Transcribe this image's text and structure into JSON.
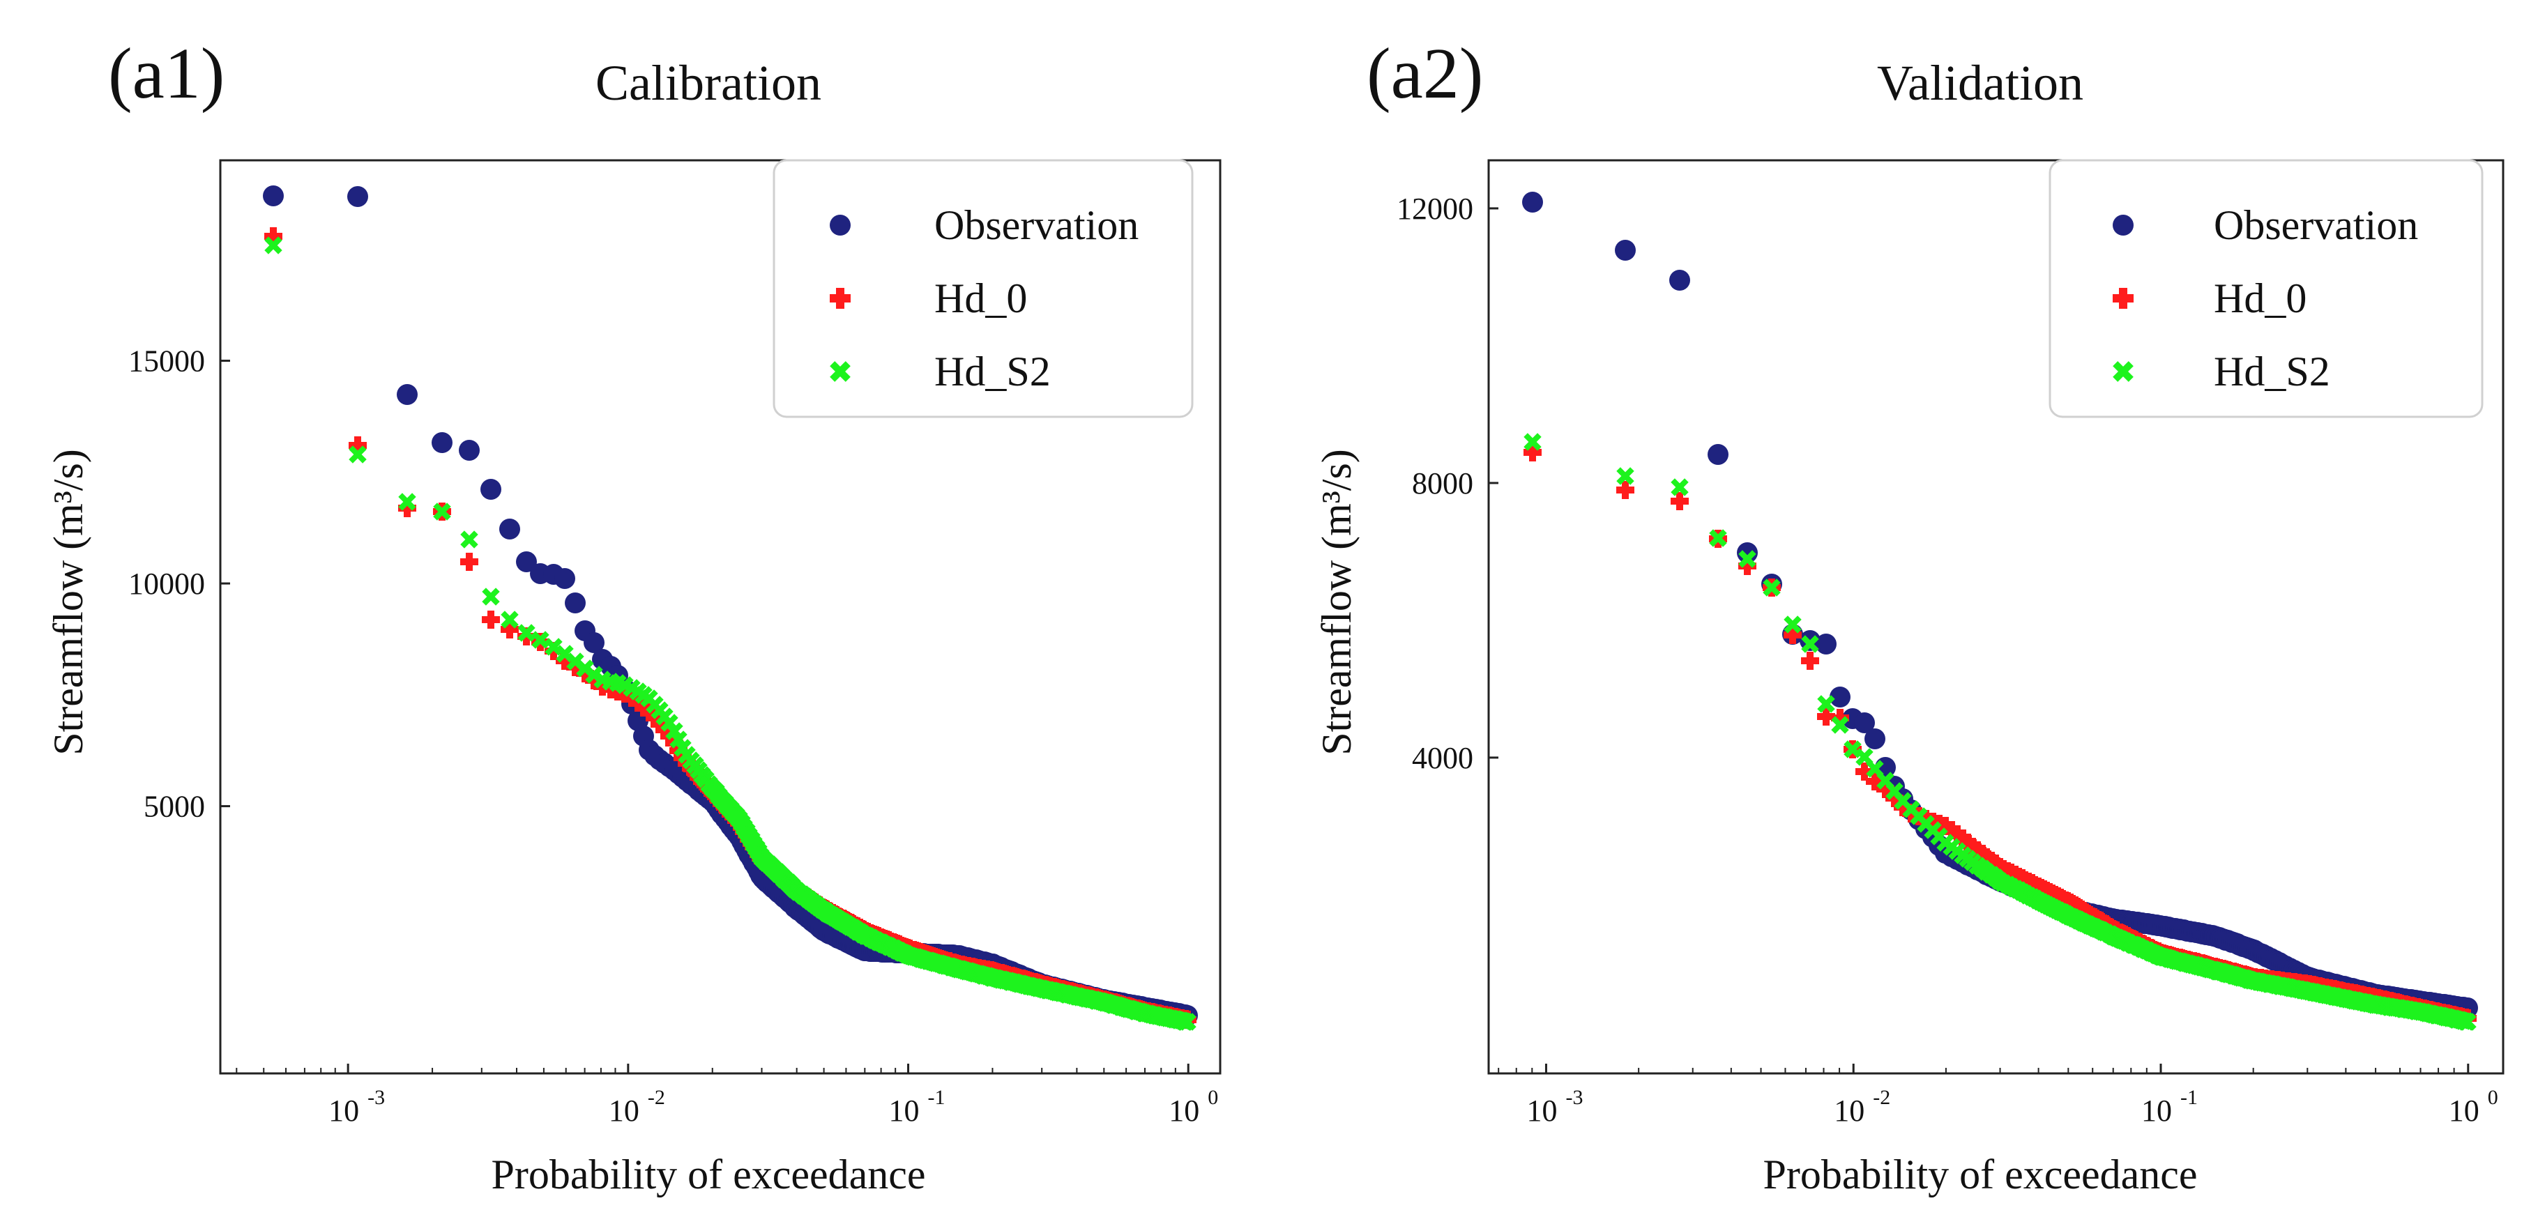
{
  "figure": {
    "xlabel": "Probability  of  exceedance",
    "ylabel": "Streamflow (m³/s)",
    "legend": [
      "Observation",
      "Hd_0",
      "Hd_S2"
    ],
    "colors": {
      "observation": "#1f237f",
      "hd0": "#ff1c1c",
      "hds2": "#1df31d"
    }
  },
  "chart_data": [
    {
      "type": "scatter",
      "panel_label": "(a1)",
      "title": "Calibration",
      "xlabel": "Probability  of  exceedance",
      "ylabel": "Streamflow (m³/s)",
      "xscale": "log",
      "xlim": [
        0.00035,
        1.3
      ],
      "ylim": [
        -1000,
        19500
      ],
      "yticks": [
        5000,
        10000,
        15000
      ],
      "ytick_labels": [
        "5000",
        "10000",
        "15000"
      ],
      "xticks": [
        0.001,
        0.01,
        0.1,
        1
      ],
      "xtick_labels": [
        {
          "base": "10",
          "exp": "-3"
        },
        {
          "base": "10",
          "exp": "-2"
        },
        {
          "base": "10",
          "exp": "-1"
        },
        {
          "base": "10",
          "exp": "0"
        }
      ],
      "legend_position": "top-right",
      "n_points": 1848,
      "series": [
        {
          "name": "Observation",
          "marker": "circle",
          "curve": [
            [
              0.00054,
              18700
            ],
            [
              0.00108,
              18700
            ],
            [
              0.0016,
              14300
            ],
            [
              0.0022,
              13100
            ],
            [
              0.0027,
              13000
            ],
            [
              0.0032,
              12200
            ],
            [
              0.0038,
              11200
            ],
            [
              0.0043,
              10500
            ],
            [
              0.0049,
              10200
            ],
            [
              0.0054,
              10200
            ],
            [
              0.006,
              10100
            ],
            [
              0.0065,
              9550
            ],
            [
              0.007,
              8950
            ],
            [
              0.0076,
              8650
            ],
            [
              0.0081,
              8300
            ],
            [
              0.009,
              8050
            ],
            [
              0.01,
              7500
            ],
            [
              0.011,
              6800
            ],
            [
              0.012,
              6200
            ],
            [
              0.014,
              5900
            ],
            [
              0.016,
              5600
            ],
            [
              0.02,
              5100
            ],
            [
              0.025,
              4300
            ],
            [
              0.03,
              3400
            ],
            [
              0.04,
              2700
            ],
            [
              0.05,
              2200
            ],
            [
              0.07,
              1750
            ],
            [
              0.1,
              1700
            ],
            [
              0.15,
              1650
            ],
            [
              0.2,
              1450
            ],
            [
              0.3,
              1000
            ],
            [
              0.5,
              650
            ],
            [
              0.7,
              480
            ],
            [
              1.0,
              300
            ]
          ]
        },
        {
          "name": "Hd_0",
          "marker": "plus",
          "curve": [
            [
              0.00054,
              17800
            ],
            [
              0.00108,
              13100
            ],
            [
              0.0016,
              11700
            ],
            [
              0.0022,
              11600
            ],
            [
              0.0027,
              10500
            ],
            [
              0.0032,
              9200
            ],
            [
              0.004,
              8900
            ],
            [
              0.005,
              8650
            ],
            [
              0.006,
              8250
            ],
            [
              0.007,
              8000
            ],
            [
              0.008,
              7700
            ],
            [
              0.01,
              7500
            ],
            [
              0.012,
              7100
            ],
            [
              0.014,
              6600
            ],
            [
              0.016,
              6000
            ],
            [
              0.02,
              5300
            ],
            [
              0.025,
              4600
            ],
            [
              0.03,
              3800
            ],
            [
              0.04,
              3100
            ],
            [
              0.05,
              2700
            ],
            [
              0.07,
              2200
            ],
            [
              0.1,
              1800
            ],
            [
              0.15,
              1450
            ],
            [
              0.2,
              1300
            ],
            [
              0.3,
              1000
            ],
            [
              0.5,
              650
            ],
            [
              0.7,
              400
            ],
            [
              1.0,
              200
            ]
          ]
        },
        {
          "name": "Hd_S2",
          "marker": "x",
          "curve": [
            [
              0.00054,
              17600
            ],
            [
              0.00108,
              12900
            ],
            [
              0.0016,
              11850
            ],
            [
              0.0022,
              11600
            ],
            [
              0.0027,
              11000
            ],
            [
              0.0032,
              9750
            ],
            [
              0.004,
              9000
            ],
            [
              0.005,
              8700
            ],
            [
              0.006,
              8400
            ],
            [
              0.007,
              8100
            ],
            [
              0.008,
              7850
            ],
            [
              0.01,
              7700
            ],
            [
              0.012,
              7400
            ],
            [
              0.014,
              6900
            ],
            [
              0.016,
              6200
            ],
            [
              0.02,
              5400
            ],
            [
              0.025,
              4700
            ],
            [
              0.03,
              3850
            ],
            [
              0.04,
              3100
            ],
            [
              0.05,
              2650
            ],
            [
              0.07,
              2100
            ],
            [
              0.1,
              1650
            ],
            [
              0.15,
              1350
            ],
            [
              0.2,
              1150
            ],
            [
              0.3,
              900
            ],
            [
              0.5,
              600
            ],
            [
              0.7,
              350
            ],
            [
              1.0,
              150
            ]
          ]
        }
      ]
    },
    {
      "type": "scatter",
      "panel_label": "(a2)",
      "title": "Validation",
      "xlabel": "Probability  of  exceedance",
      "ylabel": "Streamflow (m³/s)",
      "xscale": "log",
      "xlim": [
        0.00065,
        1.3
      ],
      "ylim": [
        -600,
        12700
      ],
      "yticks": [
        4000,
        8000,
        12000
      ],
      "ytick_labels": [
        "4000",
        "8000",
        "12000"
      ],
      "xticks": [
        0.001,
        0.01,
        0.1,
        1
      ],
      "xtick_labels": [
        {
          "base": "10",
          "exp": "-3"
        },
        {
          "base": "10",
          "exp": "-2"
        },
        {
          "base": "10",
          "exp": "-1"
        },
        {
          "base": "10",
          "exp": "0"
        }
      ],
      "legend_position": "top-right",
      "n_points": 1104,
      "series": [
        {
          "name": "Observation",
          "marker": "circle",
          "curve": [
            [
              0.0009,
              12100
            ],
            [
              0.0018,
              11400
            ],
            [
              0.0027,
              11000
            ],
            [
              0.0036,
              8450
            ],
            [
              0.0045,
              7000
            ],
            [
              0.0054,
              6550
            ],
            [
              0.0063,
              5800
            ],
            [
              0.0072,
              5700
            ],
            [
              0.0081,
              5700
            ],
            [
              0.009,
              4900
            ],
            [
              0.01,
              4550
            ],
            [
              0.011,
              4500
            ],
            [
              0.012,
              4200
            ],
            [
              0.013,
              3700
            ],
            [
              0.015,
              3300
            ],
            [
              0.02,
              2600
            ],
            [
              0.03,
              2200
            ],
            [
              0.05,
              1800
            ],
            [
              0.07,
              1650
            ],
            [
              0.1,
              1550
            ],
            [
              0.15,
              1400
            ],
            [
              0.2,
              1200
            ],
            [
              0.3,
              800
            ],
            [
              0.5,
              550
            ],
            [
              0.7,
              450
            ],
            [
              1.0,
              350
            ]
          ]
        },
        {
          "name": "Hd_0",
          "marker": "plus",
          "curve": [
            [
              0.0009,
              8450
            ],
            [
              0.0018,
              7900
            ],
            [
              0.0027,
              7750
            ],
            [
              0.0036,
              7200
            ],
            [
              0.0045,
              6800
            ],
            [
              0.0054,
              6500
            ],
            [
              0.0063,
              5800
            ],
            [
              0.0072,
              5450
            ],
            [
              0.0081,
              4600
            ],
            [
              0.009,
              4600
            ],
            [
              0.01,
              4100
            ],
            [
              0.011,
              3750
            ],
            [
              0.013,
              3500
            ],
            [
              0.015,
              3200
            ],
            [
              0.02,
              3000
            ],
            [
              0.03,
              2400
            ],
            [
              0.05,
              1900
            ],
            [
              0.07,
              1500
            ],
            [
              0.1,
              1150
            ],
            [
              0.15,
              950
            ],
            [
              0.2,
              800
            ],
            [
              0.3,
              700
            ],
            [
              0.5,
              500
            ],
            [
              0.7,
              350
            ],
            [
              1.0,
              200
            ]
          ]
        },
        {
          "name": "Hd_S2",
          "marker": "x",
          "curve": [
            [
              0.0009,
              8600
            ],
            [
              0.0018,
              8100
            ],
            [
              0.0027,
              7950
            ],
            [
              0.0036,
              7200
            ],
            [
              0.0045,
              6900
            ],
            [
              0.0054,
              6500
            ],
            [
              0.0063,
              5950
            ],
            [
              0.0072,
              5700
            ],
            [
              0.0081,
              4800
            ],
            [
              0.009,
              4500
            ],
            [
              0.01,
              4100
            ],
            [
              0.011,
              4000
            ],
            [
              0.013,
              3600
            ],
            [
              0.015,
              3300
            ],
            [
              0.02,
              2750
            ],
            [
              0.03,
              2200
            ],
            [
              0.05,
              1700
            ],
            [
              0.07,
              1400
            ],
            [
              0.1,
              1100
            ],
            [
              0.15,
              900
            ],
            [
              0.2,
              750
            ],
            [
              0.3,
              600
            ],
            [
              0.5,
              400
            ],
            [
              0.7,
              300
            ],
            [
              1.0,
              150
            ]
          ]
        }
      ]
    }
  ]
}
